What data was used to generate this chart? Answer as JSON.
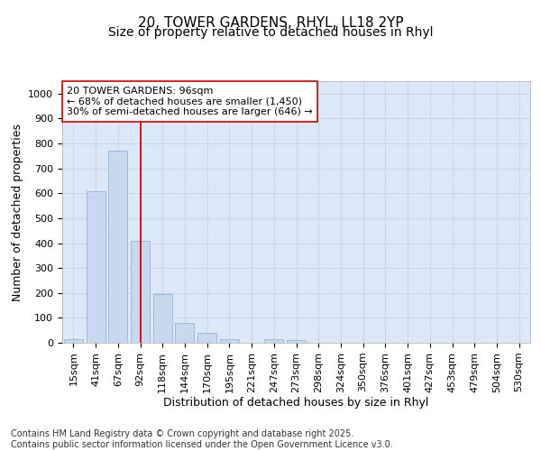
{
  "title_line1": "20, TOWER GARDENS, RHYL, LL18 2YP",
  "title_line2": "Size of property relative to detached houses in Rhyl",
  "xlabel": "Distribution of detached houses by size in Rhyl",
  "ylabel": "Number of detached properties",
  "categories": [
    "15sqm",
    "41sqm",
    "67sqm",
    "92sqm",
    "118sqm",
    "144sqm",
    "170sqm",
    "195sqm",
    "221sqm",
    "247sqm",
    "273sqm",
    "298sqm",
    "324sqm",
    "350sqm",
    "376sqm",
    "401sqm",
    "427sqm",
    "453sqm",
    "479sqm",
    "504sqm",
    "530sqm"
  ],
  "values": [
    15,
    610,
    770,
    410,
    195,
    80,
    40,
    15,
    0,
    15,
    10,
    0,
    0,
    0,
    0,
    0,
    0,
    0,
    0,
    0,
    0
  ],
  "bar_color": "#c8d8ee",
  "bar_edge_color": "#8aaad0",
  "vline_x": 3,
  "vline_color": "#cc0000",
  "annotation_text": "20 TOWER GARDENS: 96sqm\n← 68% of detached houses are smaller (1,450)\n30% of semi-detached houses are larger (646) →",
  "annotation_box_facecolor": "#ffffff",
  "annotation_box_edgecolor": "#cc0000",
  "ylim": [
    0,
    1050
  ],
  "yticks": [
    0,
    100,
    200,
    300,
    400,
    500,
    600,
    700,
    800,
    900,
    1000
  ],
  "grid_color": "#c0cce0",
  "bg_color": "#dce8f8",
  "footer_text": "Contains HM Land Registry data © Crown copyright and database right 2025.\nContains public sector information licensed under the Open Government Licence v3.0.",
  "title_fontsize": 11,
  "subtitle_fontsize": 10,
  "label_fontsize": 9,
  "tick_fontsize": 8,
  "footer_fontsize": 7,
  "annot_fontsize": 8
}
